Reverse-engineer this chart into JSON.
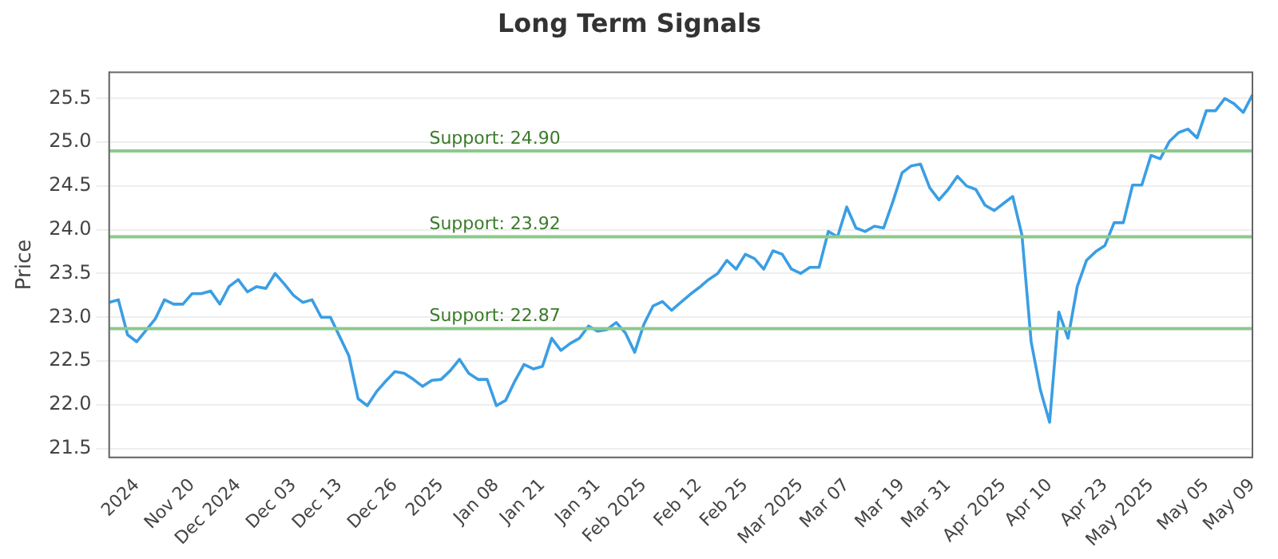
{
  "chart_data": {
    "type": "line",
    "title": "Long Term Signals",
    "ylabel": "Price",
    "categories": [
      null,
      null,
      null,
      "2024",
      null,
      null,
      null,
      null,
      null,
      "Nov 20",
      null,
      null,
      null,
      null,
      "Dec 2024",
      null,
      null,
      null,
      null,
      null,
      "Dec 03",
      null,
      null,
      null,
      null,
      "Dec 13",
      null,
      null,
      null,
      null,
      null,
      "Dec 26",
      null,
      null,
      null,
      null,
      "2025",
      null,
      null,
      null,
      null,
      null,
      "Jan 08",
      null,
      null,
      null,
      null,
      "Jan 21",
      null,
      null,
      null,
      null,
      null,
      "Jan 31",
      null,
      null,
      null,
      null,
      "Feb 2025",
      null,
      null,
      null,
      null,
      null,
      "Feb 12",
      null,
      null,
      null,
      null,
      "Feb 25",
      null,
      null,
      null,
      null,
      null,
      "Mar 2025",
      null,
      null,
      null,
      null,
      "Mar 07",
      null,
      null,
      null,
      null,
      null,
      "Mar 19",
      null,
      null,
      null,
      null,
      "Mar 31",
      null,
      null,
      null,
      null,
      null,
      "Apr 2025",
      null,
      null,
      null,
      null,
      "Apr 10",
      null,
      null,
      null,
      null,
      null,
      "Apr 23",
      null,
      null,
      null,
      null,
      "May 2025",
      null,
      null,
      null,
      null,
      null,
      "May 05",
      null,
      null,
      null,
      null,
      "May 09"
    ],
    "series": [
      {
        "color": "#3a9ee4",
        "values": [
          23.17,
          23.2,
          22.8,
          22.72,
          22.85,
          22.98,
          23.2,
          23.15,
          23.15,
          23.27,
          23.27,
          23.3,
          23.15,
          23.35,
          23.43,
          23.29,
          23.35,
          23.33,
          23.5,
          23.38,
          23.25,
          23.17,
          23.2,
          23.0,
          23.0,
          22.78,
          22.56,
          22.07,
          21.99,
          22.15,
          22.27,
          22.38,
          22.36,
          22.29,
          22.21,
          22.28,
          22.29,
          22.39,
          22.52,
          22.36,
          22.29,
          22.29,
          21.99,
          22.05,
          22.27,
          22.46,
          22.41,
          22.44,
          22.76,
          22.62,
          22.7,
          22.76,
          22.9,
          22.84,
          22.86,
          22.94,
          22.82,
          22.6,
          22.92,
          23.13,
          23.18,
          23.08,
          23.17,
          23.26,
          23.34,
          23.43,
          23.5,
          23.65,
          23.55,
          23.72,
          23.67,
          23.55,
          23.76,
          23.72,
          23.55,
          23.5,
          23.57,
          23.57,
          23.98,
          23.92,
          24.26,
          24.02,
          23.98,
          24.04,
          24.02,
          24.32,
          24.65,
          24.73,
          24.75,
          24.48,
          24.34,
          24.46,
          24.61,
          24.5,
          24.46,
          24.28,
          24.22,
          24.3,
          24.38,
          23.94,
          22.72,
          22.17,
          21.8,
          23.06,
          22.76,
          23.35,
          23.65,
          23.75,
          23.82,
          24.08,
          24.08,
          24.51,
          24.51,
          24.85,
          24.81,
          25.01,
          25.11,
          25.15,
          25.05,
          25.36,
          25.36,
          25.5,
          25.44,
          25.34,
          25.54
        ]
      }
    ],
    "ylim": [
      21.4,
      25.8
    ],
    "yticks": [
      21.5,
      {
        "value": 22,
        "label": "22.0"
      },
      22.5,
      {
        "value": 23,
        "label": "23.0"
      },
      23.5,
      {
        "value": 24,
        "label": "24.0"
      },
      24.5,
      {
        "value": 25,
        "label": "25.0"
      },
      25.5
    ],
    "ref_lines": [
      {
        "axis": "y",
        "value": 24.9,
        "label": "Support: 24.90",
        "color": "#8cc98c"
      },
      {
        "axis": "y",
        "value": 23.92,
        "label": "Support: 23.92",
        "color": "#8cc98c"
      },
      {
        "axis": "y",
        "value": 22.87,
        "label": "Support: 22.87",
        "color": "#8cc98c"
      }
    ],
    "grid": "y",
    "legend": false,
    "marker": "none",
    "line_style": "solid"
  }
}
